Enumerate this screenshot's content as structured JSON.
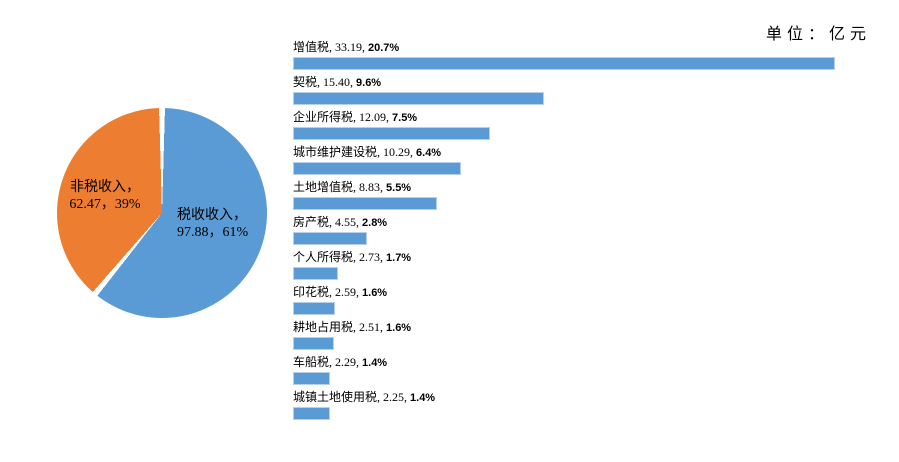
{
  "page": {
    "unit_label": "单位：亿元",
    "background": "#ffffff"
  },
  "colors": {
    "bar_fill": "#5B9BD5",
    "bar_border": "#B7CFE9",
    "pie_tax": "#5B9BD5",
    "pie_nontax": "#ED7D31",
    "text": "#000000"
  },
  "chart_data": [
    {
      "type": "pie",
      "unit": "亿元",
      "start_angle_deg": 0,
      "direction": "clockwise",
      "slices": [
        {
          "label": "税收收入",
          "value": 97.88,
          "pct": "61%",
          "pct_value": 61,
          "color": "#5B9BD5",
          "label_line1": "税收收入，",
          "label_line2": "97.88，61%"
        },
        {
          "label": "非税收入",
          "value": 62.47,
          "pct": "39%",
          "pct_value": 39,
          "color": "#ED7D31",
          "label_line1": "非税收入，",
          "label_line2": "62.47，39%"
        }
      ]
    },
    {
      "type": "bar",
      "orientation": "horizontal",
      "unit": "亿元",
      "bar_color": "#5B9BD5",
      "xlim": [
        0,
        34
      ],
      "categories": [
        "增值税",
        "契税",
        "企业所得税",
        "城市维护建设税",
        "土地增值税",
        "房产税",
        "个人所得税",
        "印花税",
        "耕地占用税",
        "车船税",
        "城镇土地使用税"
      ],
      "values": [
        33.19,
        15.4,
        12.09,
        10.29,
        8.83,
        4.55,
        2.73,
        2.59,
        2.51,
        2.29,
        2.25
      ],
      "value_labels": [
        "33.19",
        "15.40",
        "12.09",
        "10.29",
        "8.83",
        "4.55",
        "2.73",
        "2.59",
        "2.51",
        "2.29",
        "2.25"
      ],
      "pct_labels": [
        "20.7%",
        "9.6%",
        "7.5%",
        "6.4%",
        "5.5%",
        "2.8%",
        "1.7%",
        "1.6%",
        "1.6%",
        "1.4%",
        "1.4%"
      ],
      "label_separator": ", "
    }
  ]
}
